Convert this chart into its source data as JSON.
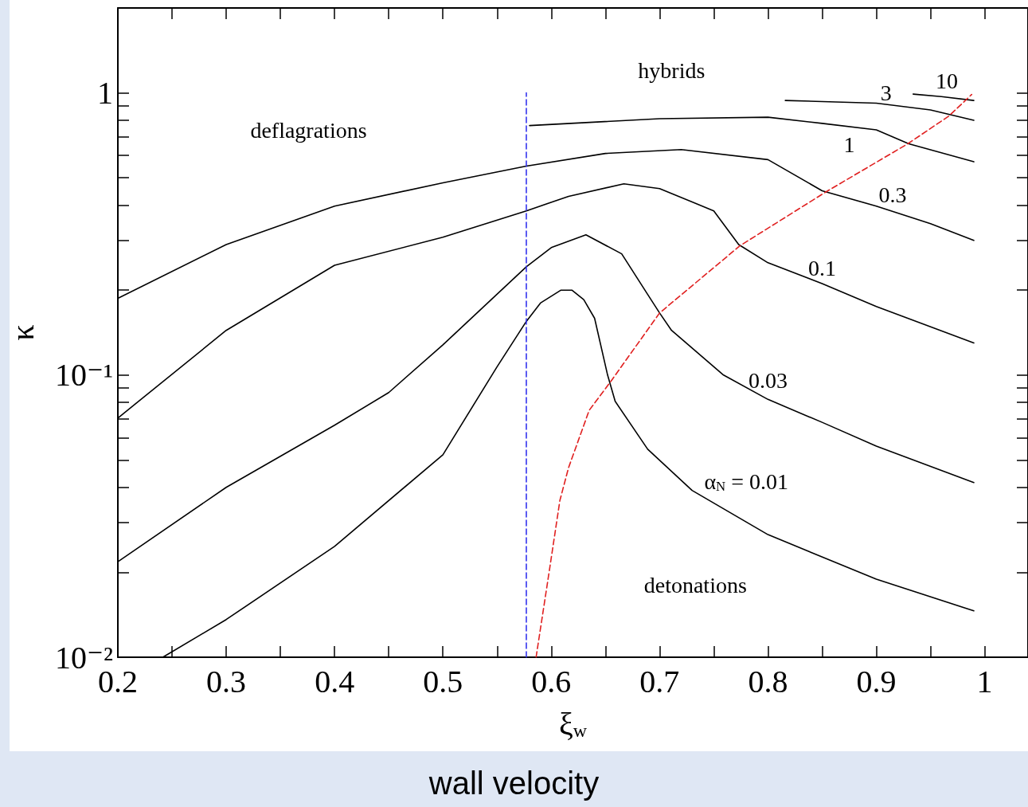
{
  "chart_data": {
    "type": "line",
    "title": "wall velocity",
    "xlabel": "ξ$_{w}$",
    "ylabel": "κ",
    "annotations": [
      "deflagrations",
      "hybrids",
      "detonations"
    ],
    "log": "y",
    "grid": false,
    "marker": "none",
    "line_style": "solid",
    "xlim": [
      0.2,
      1.04
    ],
    "xticks": [
      0.2,
      {
        "value": 0.25,
        "label": null
      },
      0.3,
      {
        "value": 0.35,
        "label": null
      },
      0.4,
      {
        "value": 0.45,
        "label": null
      },
      0.5,
      {
        "value": 0.55,
        "label": null
      },
      0.6,
      {
        "value": 0.65,
        "label": null
      },
      0.7,
      {
        "value": 0.75,
        "label": null
      },
      0.8,
      {
        "value": 0.85,
        "label": null
      },
      0.9,
      {
        "value": 0.95,
        "label": null
      },
      1
    ],
    "ylim": [
      0.01,
      2
    ],
    "yticks": [
      {
        "value": 0.01,
        "label": "10⁻²"
      },
      {
        "value": 0.02,
        "label": null
      },
      {
        "value": 0.03,
        "label": null
      },
      {
        "value": 0.04,
        "label": null
      },
      {
        "value": 0.05,
        "label": null
      },
      {
        "value": 0.06,
        "label": null
      },
      {
        "value": 0.07,
        "label": null
      },
      {
        "value": 0.08,
        "label": null
      },
      {
        "value": 0.09,
        "label": null
      },
      {
        "value": 0.1,
        "label": "10⁻¹"
      },
      {
        "value": 0.2,
        "label": null
      },
      {
        "value": 0.3,
        "label": null
      },
      {
        "value": 0.4,
        "label": null
      },
      {
        "value": 0.5,
        "label": null
      },
      {
        "value": 0.6,
        "label": null
      },
      {
        "value": 0.7,
        "label": null
      },
      {
        "value": 0.8,
        "label": null
      },
      {
        "value": 0.9,
        "label": null
      },
      1,
      {
        "value": 2,
        "label": null
      }
    ],
    "series": [
      {
        "name": "10",
        "color": "#000000",
        "x": [
          0.934,
          0.96,
          0.99
        ],
        "values": [
          0.99,
          0.97,
          0.94
        ]
      },
      {
        "name": "3",
        "color": "#000000",
        "x": [
          0.816,
          0.9,
          0.95,
          0.99
        ],
        "values": [
          0.94,
          0.92,
          0.87,
          0.8
        ]
      },
      {
        "name": "1",
        "color": "#000000",
        "x": [
          0.58,
          0.7,
          0.8,
          0.85,
          0.9,
          0.93,
          0.99
        ],
        "values": [
          0.766,
          0.81,
          0.82,
          0.78,
          0.74,
          0.66,
          0.57
        ]
      },
      {
        "name": "0.3",
        "color": "#000000",
        "x": [
          0.2,
          0.3,
          0.4,
          0.5,
          0.577,
          0.65,
          0.72,
          0.8,
          0.85,
          0.9,
          0.95,
          0.99
        ],
        "values": [
          0.187,
          0.29,
          0.397,
          0.48,
          0.55,
          0.61,
          0.63,
          0.58,
          0.45,
          0.397,
          0.344,
          0.3
        ]
      },
      {
        "name": "0.1",
        "color": "#000000",
        "x": [
          0.2,
          0.3,
          0.4,
          0.5,
          0.577,
          0.616,
          0.667,
          0.7,
          0.75,
          0.773,
          0.8,
          0.85,
          0.9,
          0.99
        ],
        "values": [
          0.0704,
          0.144,
          0.245,
          0.308,
          0.382,
          0.43,
          0.476,
          0.458,
          0.382,
          0.29,
          0.25,
          0.211,
          0.175,
          0.13
        ]
      },
      {
        "name": "0.03",
        "color": "#000000",
        "x": [
          0.2,
          0.3,
          0.4,
          0.45,
          0.5,
          0.577,
          0.6,
          0.632,
          0.665,
          0.689,
          0.7,
          0.711,
          0.759,
          0.8,
          0.85,
          0.9,
          0.99
        ],
        "values": [
          0.0218,
          0.04,
          0.0664,
          0.0867,
          0.128,
          0.242,
          0.283,
          0.314,
          0.269,
          0.193,
          0.166,
          0.144,
          0.1,
          0.082,
          0.068,
          0.056,
          0.0416
        ]
      },
      {
        "name": "α$_{N}$ = 0.01",
        "color": "#000000",
        "x": [
          0.2415,
          0.3,
          0.4,
          0.5,
          0.55,
          0.577,
          0.59,
          0.609,
          0.619,
          0.63,
          0.64,
          0.652,
          0.659,
          0.689,
          0.73,
          0.8,
          0.9,
          0.99
        ],
        "values": [
          0.01,
          0.0136,
          0.0247,
          0.0522,
          0.107,
          0.155,
          0.18,
          0.2,
          0.2,
          0.185,
          0.159,
          0.1,
          0.0807,
          0.0546,
          0.039,
          0.0272,
          0.0189,
          0.0146
        ]
      },
      {
        "color": "#3333ee",
        "line_style": "dashed",
        "x": [
          0.577,
          0.577
        ],
        "values": [
          0.01,
          1
        ]
      },
      {
        "color": "#e02020",
        "line_style": "dashed",
        "x": [
          0.586,
          0.598,
          0.608,
          0.616,
          0.635,
          0.655,
          0.7,
          0.774,
          0.854,
          0.929,
          0.967,
          0.988
        ],
        "values": [
          0.01,
          0.02,
          0.036,
          0.047,
          0.075,
          0.095,
          0.166,
          0.287,
          0.447,
          0.66,
          0.828,
          0.987
        ]
      }
    ]
  }
}
